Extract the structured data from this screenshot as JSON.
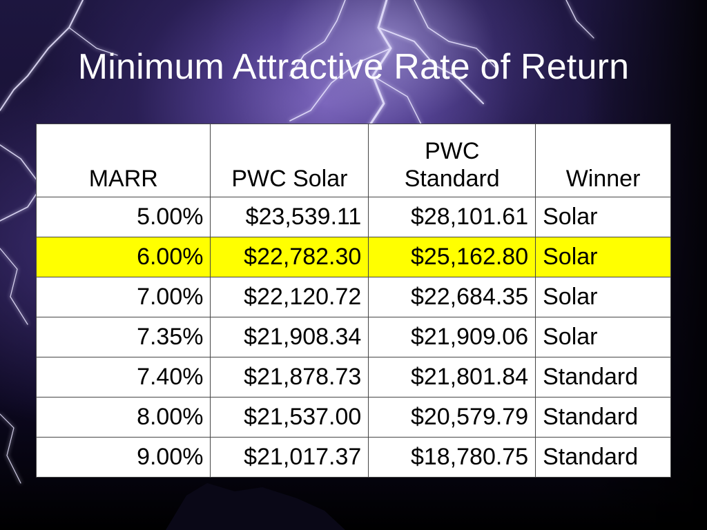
{
  "slide": {
    "title": "Minimum Attractive Rate of Return"
  },
  "table": {
    "headers": {
      "marr": "MARR",
      "pwc_solar": "PWC Solar",
      "pwc_standard_line1": "PWC",
      "pwc_standard_line2": "Standard",
      "winner": "Winner"
    },
    "rows": [
      {
        "marr": "5.00%",
        "pwc_solar": "$23,539.11",
        "pwc_standard": "$28,101.61",
        "winner": "Solar"
      },
      {
        "marr": "6.00%",
        "pwc_solar": "$22,782.30",
        "pwc_standard": "$25,162.80",
        "winner": "Solar"
      },
      {
        "marr": "7.00%",
        "pwc_solar": "$22,120.72",
        "pwc_standard": "$22,684.35",
        "winner": "Solar"
      },
      {
        "marr": "7.35%",
        "pwc_solar": "$21,908.34",
        "pwc_standard": "$21,909.06",
        "winner": "Solar"
      },
      {
        "marr": "7.40%",
        "pwc_solar": "$21,878.73",
        "pwc_standard": "$21,801.84",
        "winner": "Standard"
      },
      {
        "marr": "8.00%",
        "pwc_solar": "$21,537.00",
        "pwc_standard": "$20,579.79",
        "winner": "Standard"
      },
      {
        "marr": "9.00%",
        "pwc_solar": "$21,017.37",
        "pwc_standard": "$18,780.75",
        "winner": "Standard"
      }
    ],
    "highlight_row": 1,
    "highlight_color": "#ffff00"
  },
  "background": {
    "theme": "lightning-storm",
    "sky_color": "#2a1f55",
    "bolt_color": "#e8e4ff"
  }
}
